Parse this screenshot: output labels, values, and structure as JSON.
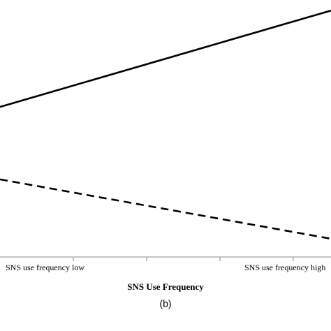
{
  "chart_data": {
    "type": "line",
    "categories": [
      "SNS use frequency low",
      "SNS use frequency high"
    ],
    "series": [
      {
        "color": "#000000",
        "dash": false,
        "values": [
          58.4,
          95.9
        ]
      },
      {
        "color": "#000000",
        "dash": true,
        "values": [
          30.2,
          7.1
        ]
      }
    ],
    "ylim": [
      0,
      100
    ],
    "x_label": "SNS Use Frequency",
    "caption": "(b)"
  }
}
